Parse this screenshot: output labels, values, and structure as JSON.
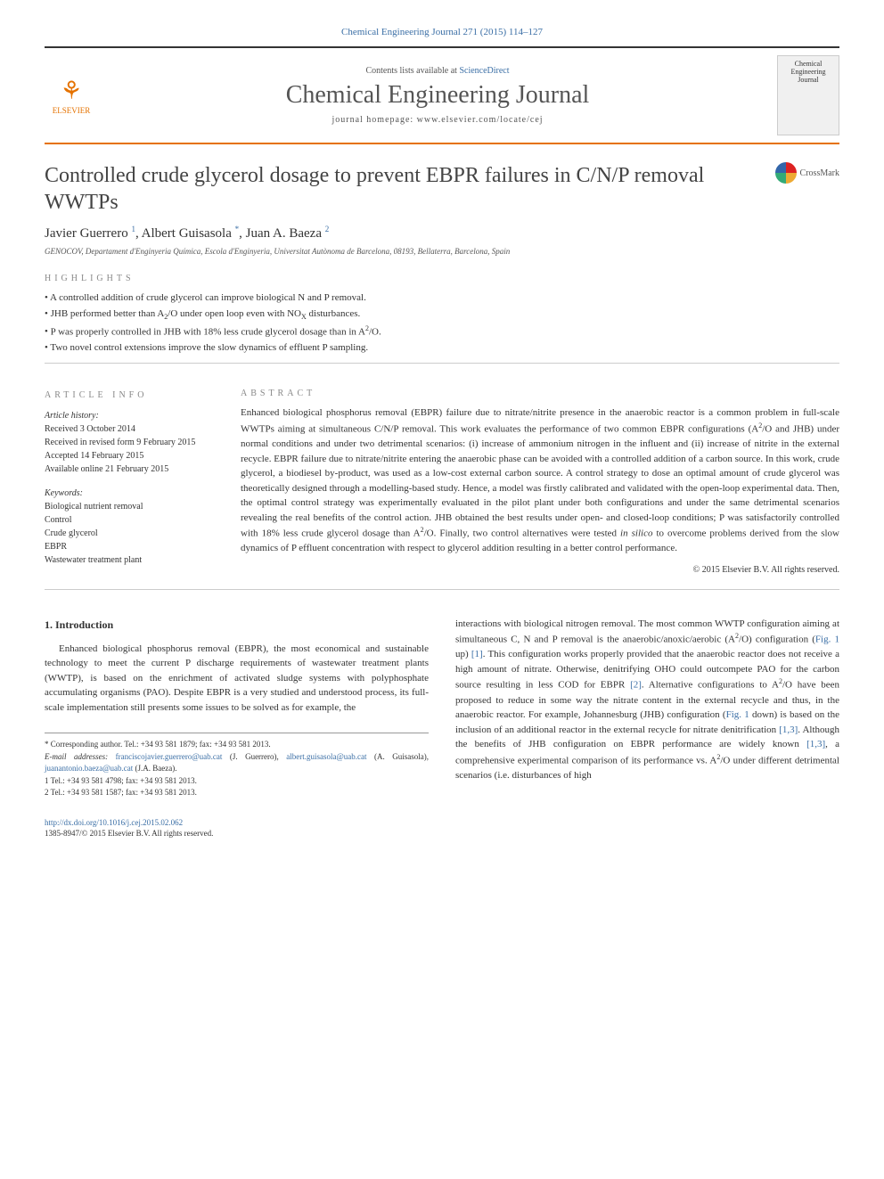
{
  "journal_ref": "Chemical Engineering Journal 271 (2015) 114–127",
  "header": {
    "contents_prefix": "Contents lists available at ",
    "contents_link": "ScienceDirect",
    "journal_name": "Chemical Engineering Journal",
    "homepage_prefix": "journal homepage: ",
    "homepage_url": "www.elsevier.com/locate/cej",
    "publisher": "ELSEVIER",
    "cover_title": "Chemical Engineering Journal"
  },
  "crossmark_label": "CrossMark",
  "title": "Controlled crude glycerol dosage to prevent EBPR failures in C/N/P removal WWTPs",
  "authors_html": "Javier Guerrero <sup>1</sup>, Albert Guisasola <sup>*</sup>, Juan A. Baeza <sup>2</sup>",
  "affiliation": "GENOCOV, Departament d'Enginyeria Química, Escola d'Enginyeria, Universitat Autònoma de Barcelona, 08193, Bellaterra, Barcelona, Spain",
  "highlights_label": "HIGHLIGHTS",
  "highlights": [
    "A controlled addition of crude glycerol can improve biological N and P removal.",
    "JHB performed better than A<sub>2</sub>/O under open loop even with NO<sub>X</sub> disturbances.",
    "P was properly controlled in JHB with 18% less crude glycerol dosage than in A<sup>2</sup>/O.",
    "Two novel control extensions improve the slow dynamics of effluent P sampling."
  ],
  "article_info_label": "ARTICLE INFO",
  "history_head": "Article history:",
  "history": [
    "Received 3 October 2014",
    "Received in revised form 9 February 2015",
    "Accepted 14 February 2015",
    "Available online 21 February 2015"
  ],
  "keywords_head": "Keywords:",
  "keywords": [
    "Biological nutrient removal",
    "Control",
    "Crude glycerol",
    "EBPR",
    "Wastewater treatment plant"
  ],
  "abstract_label": "ABSTRACT",
  "abstract": "Enhanced biological phosphorus removal (EBPR) failure due to nitrate/nitrite presence in the anaerobic reactor is a common problem in full-scale WWTPs aiming at simultaneous C/N/P removal. This work evaluates the performance of two common EBPR configurations (A<sup>2</sup>/O and JHB) under normal conditions and under two detrimental scenarios: (i) increase of ammonium nitrogen in the influent and (ii) increase of nitrite in the external recycle. EBPR failure due to nitrate/nitrite entering the anaerobic phase can be avoided with a controlled addition of a carbon source. In this work, crude glycerol, a biodiesel by-product, was used as a low-cost external carbon source. A control strategy to dose an optimal amount of crude glycerol was theoretically designed through a modelling-based study. Hence, a model was firstly calibrated and validated with the open-loop experimental data. Then, the optimal control strategy was experimentally evaluated in the pilot plant under both configurations and under the same detrimental scenarios revealing the real benefits of the control action. JHB obtained the best results under open- and closed-loop conditions; P was satisfactorily controlled with 18% less crude glycerol dosage than A<sup>2</sup>/O. Finally, two control alternatives were tested <i>in silico</i> to overcome problems derived from the slow dynamics of P effluent concentration with respect to glycerol addition resulting in a better control performance.",
  "copyright": "© 2015 Elsevier B.V. All rights reserved.",
  "intro_heading": "1. Introduction",
  "col_left": "Enhanced biological phosphorus removal (EBPR), the most economical and sustainable technology to meet the current P discharge requirements of wastewater treatment plants (WWTP), is based on the enrichment of activated sludge systems with polyphosphate accumulating organisms (PAO). Despite EBPR is a very studied and understood process, its full-scale implementation still presents some issues to be solved as for example, the",
  "col_right": "interactions with biological nitrogen removal. The most common WWTP configuration aiming at simultaneous C, N and P removal is the anaerobic/anoxic/aerobic (A<sup>2</sup>/O) configuration (<a>Fig. 1</a> up) <a>[1]</a>. This configuration works properly provided that the anaerobic reactor does not receive a high amount of nitrate. Otherwise, denitrifying OHO could outcompete PAO for the carbon source resulting in less COD for EBPR <a>[2]</a>. Alternative configurations to A<sup>2</sup>/O have been proposed to reduce in some way the nitrate content in the external recycle and thus, in the anaerobic reactor. For example, Johannesburg (JHB) configuration (<a>Fig. 1</a> down) is based on the inclusion of an additional reactor in the external recycle for nitrate denitrification <a>[1,3]</a>. Although the benefits of JHB configuration on EBPR performance are widely known <a>[1,3]</a>, a comprehensive experimental comparison of its performance vs. A<sup>2</sup>/O under different detrimental scenarios (i.e. disturbances of high",
  "footnotes": {
    "corr": "* Corresponding author. Tel.: +34 93 581 1879; fax: +34 93 581 2013.",
    "emails_label": "E-mail addresses: ",
    "email1": "franciscojavier.guerrero@uab.cat",
    "email1_who": " (J. Guerrero), ",
    "email2": "albert.guisasola@uab.cat",
    "email2_who": " (A. Guisasola), ",
    "email3": "juanantonio.baeza@uab.cat",
    "email3_who": " (J.A. Baeza).",
    "note1": "1  Tel.: +34 93 581 4798; fax: +34 93 581 2013.",
    "note2": "2  Tel.: +34 93 581 1587; fax: +34 93 581 2013."
  },
  "doi": {
    "url": "http://dx.doi.org/10.1016/j.cej.2015.02.062",
    "issn_line": "1385-8947/© 2015 Elsevier B.V. All rights reserved."
  }
}
